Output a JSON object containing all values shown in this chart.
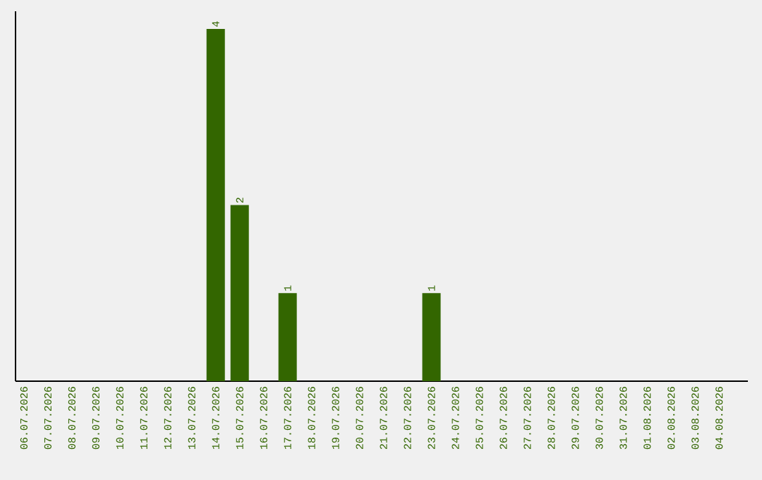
{
  "chart_data": {
    "type": "bar",
    "categories": [
      "06.07.2026",
      "07.07.2026",
      "08.07.2026",
      "09.07.2026",
      "10.07.2026",
      "11.07.2026",
      "12.07.2026",
      "13.07.2026",
      "14.07.2026",
      "15.07.2026",
      "16.07.2026",
      "17.07.2026",
      "18.07.2026",
      "19.07.2026",
      "20.07.2026",
      "21.07.2026",
      "22.07.2026",
      "23.07.2026",
      "24.07.2026",
      "25.07.2026",
      "26.07.2026",
      "27.07.2026",
      "28.07.2026",
      "29.07.2026",
      "30.07.2026",
      "31.07.2026",
      "01.08.2026",
      "02.08.2026",
      "03.08.2026",
      "04.08.2026"
    ],
    "values": [
      0,
      0,
      0,
      0,
      0,
      0,
      0,
      0,
      4,
      2,
      0,
      1,
      0,
      0,
      0,
      0,
      0,
      1,
      0,
      0,
      0,
      0,
      0,
      0,
      0,
      0,
      0,
      0,
      0,
      0
    ],
    "value_labels": [
      null,
      null,
      null,
      null,
      null,
      null,
      null,
      null,
      "4",
      "2",
      null,
      "1",
      null,
      null,
      null,
      null,
      null,
      "1",
      null,
      null,
      null,
      null,
      null,
      null,
      null,
      null,
      null,
      null,
      null,
      null
    ],
    "color": "#336600",
    "ylim": [
      0,
      4.2
    ]
  }
}
